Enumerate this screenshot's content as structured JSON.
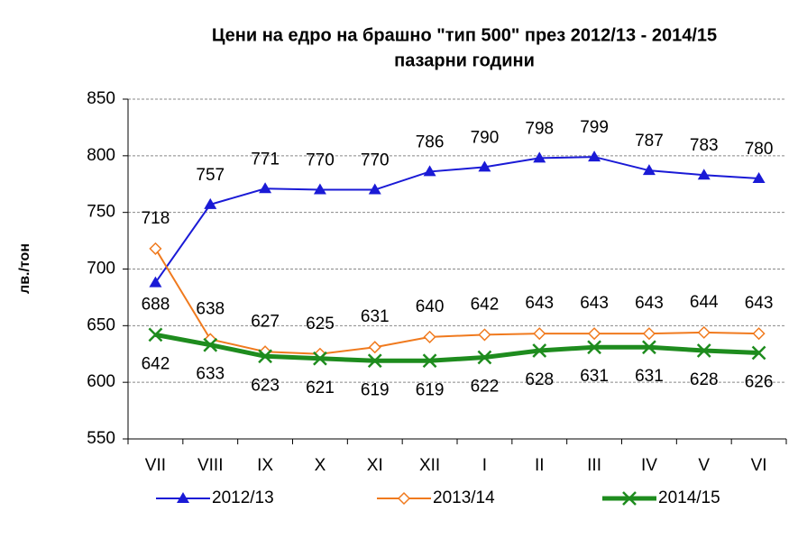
{
  "chart_data": {
    "type": "line",
    "title": [
      "Цени на едро на брашно \"тип 500\"  през 2012/13  - 2014/15",
      "пазарни години"
    ],
    "y_label": "лв./тон",
    "categories": [
      "VII",
      "VIII",
      "IX",
      "X",
      "XI",
      "XII",
      "I",
      "II",
      "III",
      "IV",
      "V",
      "VI"
    ],
    "series": [
      {
        "name": "2012/13",
        "color": "#1a1ad6",
        "marker": "triangle",
        "values": [
          688,
          757,
          771,
          770,
          770,
          786,
          790,
          798,
          799,
          787,
          783,
          780
        ]
      },
      {
        "name": "2013/14",
        "color": "#f07a1e",
        "marker": "diamond",
        "values": [
          718,
          638,
          627,
          625,
          631,
          640,
          642,
          643,
          643,
          643,
          644,
          643
        ]
      },
      {
        "name": "2014/15",
        "color": "#1e8c1e",
        "marker": "x",
        "values": [
          642,
          633,
          623,
          621,
          619,
          619,
          622,
          628,
          631,
          631,
          628,
          626
        ]
      }
    ],
    "ylim": [
      550,
      850
    ],
    "yticks": [
      550,
      600,
      650,
      700,
      750,
      800,
      850
    ],
    "grid": true,
    "legend": "bottom"
  }
}
